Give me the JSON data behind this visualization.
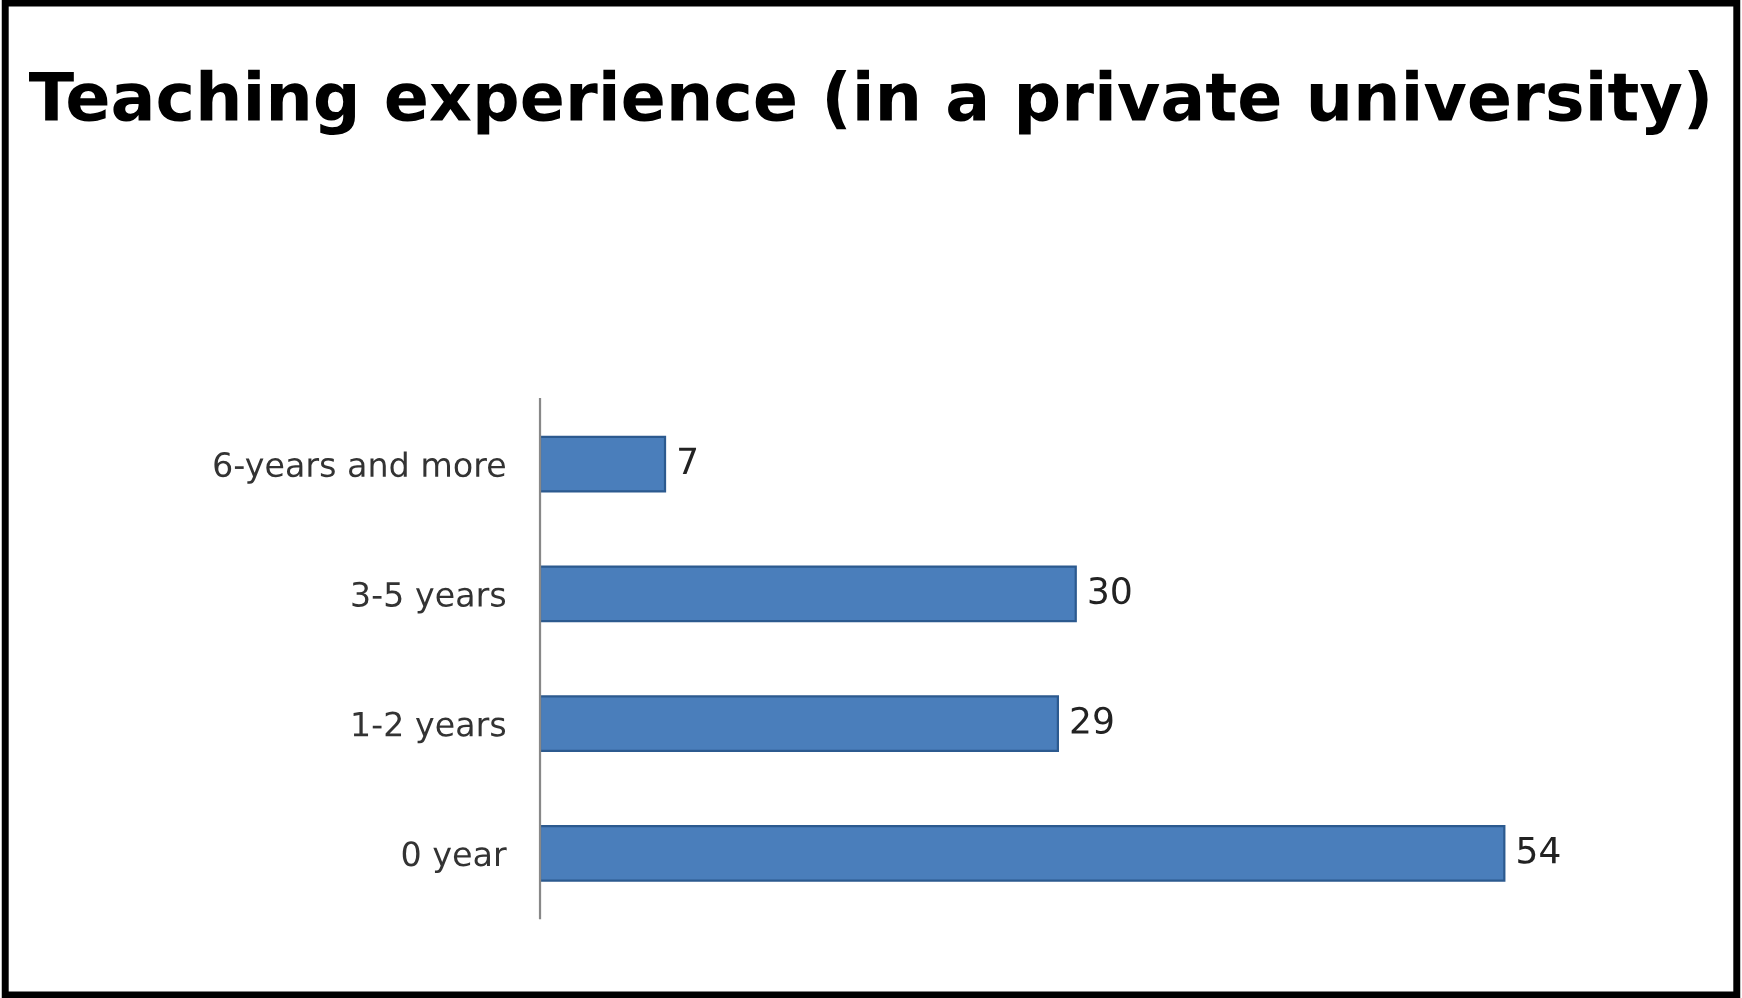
{
  "chart_data": {
    "type": "bar",
    "orientation": "horizontal",
    "title": "Teaching experience (in a private university)",
    "categories": [
      "6-years and more",
      "3-5 years",
      "1-2 years",
      "0 year"
    ],
    "values": [
      7,
      30,
      29,
      54
    ],
    "color": "#4a7ebb",
    "data_labels": true,
    "tick_labels": "y"
  }
}
